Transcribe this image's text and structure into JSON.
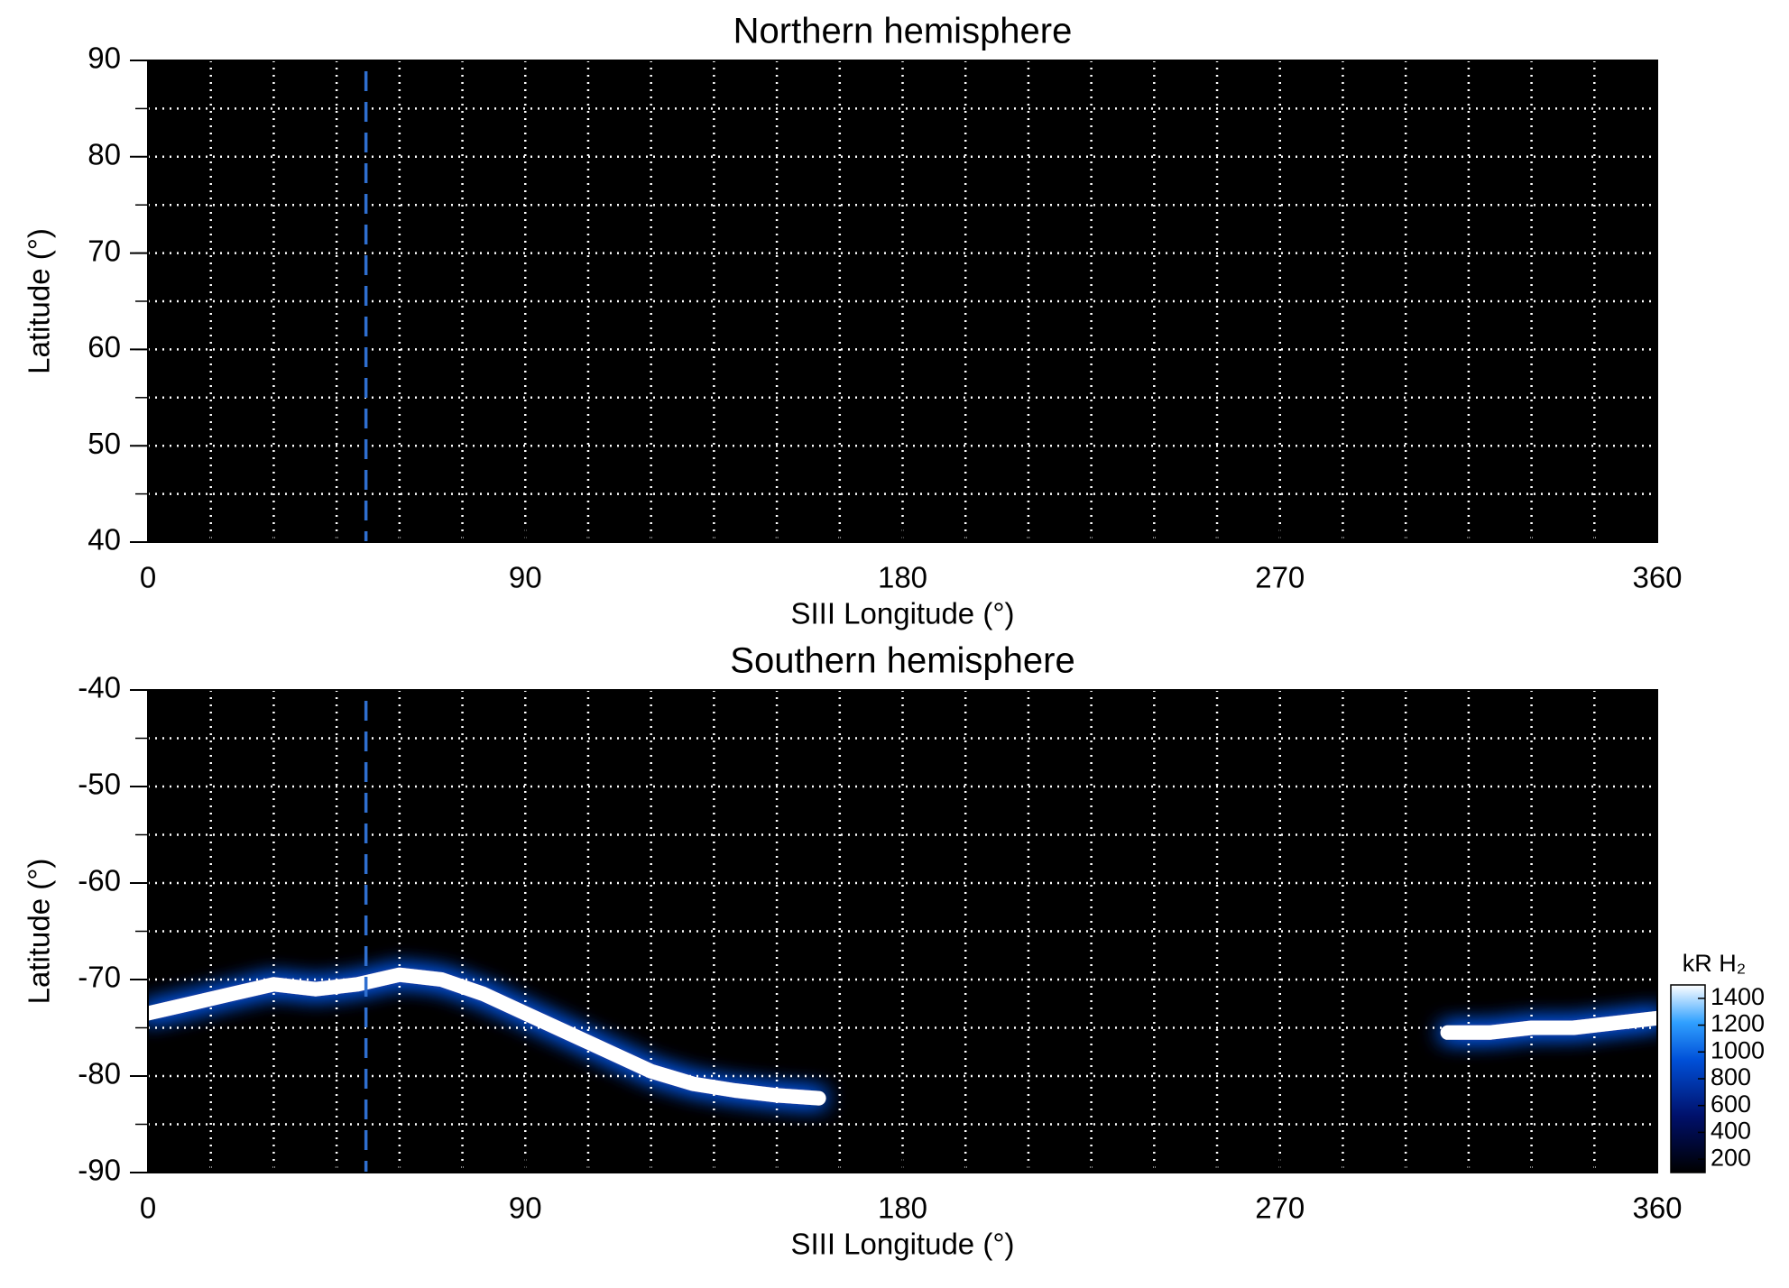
{
  "chart_data": [
    {
      "type": "heatmap",
      "title": "Northern hemisphere",
      "xlabel": "SIII Longitude (°)",
      "ylabel": "Latitude (°)",
      "xlim": [
        0,
        360
      ],
      "xticks": [
        0,
        90,
        180,
        270,
        360
      ],
      "ylim": [
        40,
        90
      ],
      "yticks": [
        40,
        50,
        60,
        70,
        80,
        90
      ],
      "xgrid": [
        15,
        30,
        45,
        60,
        75,
        90,
        105,
        120,
        135,
        150,
        165,
        180,
        195,
        210,
        225,
        240,
        255,
        270,
        285,
        300,
        315,
        330,
        345
      ],
      "ygrid": [
        45,
        50,
        55,
        60,
        65,
        70,
        75,
        80,
        85
      ],
      "reference_longitude": 52,
      "background": "#000000"
    },
    {
      "type": "heatmap",
      "title": "Southern hemisphere",
      "xlabel": "SIII Longitude (°)",
      "ylabel": "Latitude (°)",
      "xlim": [
        0,
        360
      ],
      "xticks": [
        0,
        90,
        180,
        270,
        360
      ],
      "ylim": [
        -90,
        -40
      ],
      "yticks": [
        -90,
        -80,
        -70,
        -60,
        -50,
        -40
      ],
      "xgrid": [
        15,
        30,
        45,
        60,
        75,
        90,
        105,
        120,
        135,
        150,
        165,
        180,
        195,
        210,
        225,
        240,
        255,
        270,
        285,
        300,
        315,
        330,
        345
      ],
      "ygrid": [
        -85,
        -80,
        -75,
        -70,
        -65,
        -60,
        -55,
        -50,
        -45
      ],
      "reference_longitude": 52,
      "background": "#000000",
      "x": [
        0,
        10,
        20,
        30,
        40,
        50,
        60,
        70,
        80,
        90,
        100,
        110,
        120,
        130,
        140,
        150,
        160,
        230,
        310,
        320,
        330,
        340,
        350,
        360
      ],
      "values": [
        -73.5,
        -72.5,
        -71.5,
        -70.5,
        -71,
        -70.5,
        -69.5,
        -70,
        -71.5,
        -73.5,
        -75.5,
        -77.5,
        -79.5,
        -80.8,
        -81.5,
        -82,
        -82.3,
        null,
        -75.5,
        -75.5,
        -75,
        -75,
        -74.5,
        -74
      ],
      "colorbar": {
        "label": "kR H₂",
        "lim": [
          100,
          1500
        ],
        "ticks": [
          200,
          400,
          600,
          800,
          1000,
          1200,
          1400
        ]
      }
    }
  ]
}
